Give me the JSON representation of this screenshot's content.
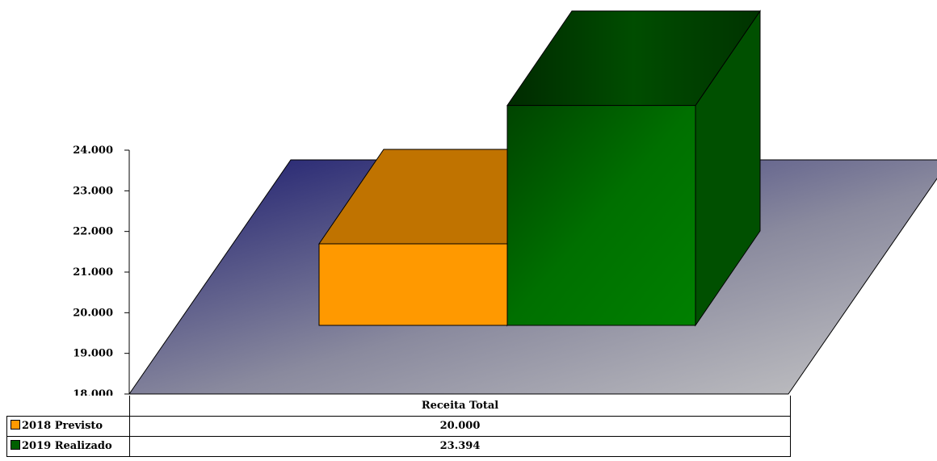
{
  "chart_data": {
    "type": "bar",
    "style": "3d",
    "categories": [
      "Receita Total"
    ],
    "series": [
      {
        "name": "2018 Previsto",
        "values": [
          20000
        ],
        "value_label": "20.000",
        "color": "#FF9900"
      },
      {
        "name": "2019 Realizado",
        "values": [
          23394
        ],
        "value_label": "23.394",
        "color": "#008000"
      }
    ],
    "ylim": [
      18000,
      24000
    ],
    "yticks": [
      {
        "value": 18000,
        "label": "18.000"
      },
      {
        "value": 19000,
        "label": "19.000"
      },
      {
        "value": 20000,
        "label": "20.000"
      },
      {
        "value": 21000,
        "label": "21.000"
      },
      {
        "value": 22000,
        "label": "22.000"
      },
      {
        "value": 23000,
        "label": "23.000"
      },
      {
        "value": 24000,
        "label": "24.000"
      }
    ],
    "legend": "data-table",
    "floor_colors": [
      "#1a1a6e",
      "#c0c0c0"
    ]
  }
}
